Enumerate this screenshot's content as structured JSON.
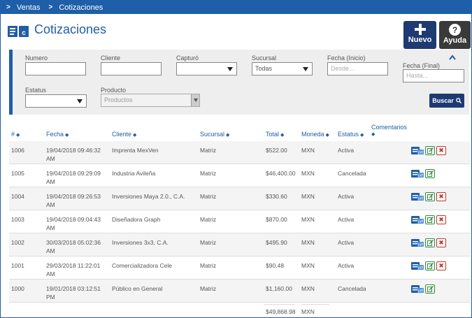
{
  "breadcrumb": [
    "Ventas",
    "Cotizaciones"
  ],
  "page_title": "Cotizaciones",
  "header_buttons": {
    "nuevo": "Nuevo",
    "ayuda": "Ayuda"
  },
  "filters": {
    "numero_label": "Numero",
    "cliente_label": "Cliente",
    "capturo_label": "Capturó",
    "sucursal_label": "Sucursal",
    "sucursal_value": "Todas",
    "fecha_inicio_label": "Fecha (Inicio)",
    "fecha_inicio_placeholder": "Desde...",
    "fecha_final_label": "Fecha (Final)",
    "fecha_final_placeholder": "Hasta...",
    "estatus_label": "Estatus",
    "producto_label": "Producto",
    "producto_value": "Productos",
    "buscar": "Buscar"
  },
  "table": {
    "headers": {
      "numero": "#",
      "fecha": "Fecha",
      "cliente": "Cliente",
      "sucursal": "Sucursal",
      "total": "Total",
      "moneda": "Moneda",
      "estatus": "Estatus",
      "comentarios": "Comentarios"
    },
    "rows": [
      {
        "numero": "1006",
        "fecha1": "19/04/2018 09:46:32",
        "fecha2": "AM",
        "cliente": "Imprenta MexVen",
        "sucursal": "Matriz",
        "total": "$522.00",
        "moneda": "MXN",
        "estatus": "Activa"
      },
      {
        "numero": "1005",
        "fecha1": "19/04/2018 09:29:09",
        "fecha2": "AM",
        "cliente": "Industria Avileña",
        "sucursal": "Matriz",
        "total": "$46,400.00",
        "moneda": "MXN",
        "estatus": "Cancelada"
      },
      {
        "numero": "1004",
        "fecha1": "19/04/2018 09:26:53",
        "fecha2": "AM",
        "cliente": "Inversiones Maya 2.0., C.A.",
        "sucursal": "Matriz",
        "total": "$330.60",
        "moneda": "MXN",
        "estatus": "Activa"
      },
      {
        "numero": "1003",
        "fecha1": "19/04/2018 09:04:43",
        "fecha2": "AM",
        "cliente": "Diseñadora Graph",
        "sucursal": "Matriz",
        "total": "$870.00",
        "moneda": "MXN",
        "estatus": "Activa"
      },
      {
        "numero": "1002",
        "fecha1": "30/03/2018 05:02:36",
        "fecha2": "AM",
        "cliente": "Inversiones 3x3, C.A.",
        "sucursal": "Matriz",
        "total": "$495.90",
        "moneda": "MXN",
        "estatus": "Activa"
      },
      {
        "numero": "1001",
        "fecha1": "29/03/2018 11:22:01",
        "fecha2": "AM",
        "cliente": "Comercializadora Cele",
        "sucursal": "Matriz",
        "total": "$90.48",
        "moneda": "MXN",
        "estatus": "Activa"
      },
      {
        "numero": "1000",
        "fecha1": "19/01/2018 03:12:51",
        "fecha2": "PM",
        "cliente": "Público en General",
        "sucursal": "Matriz",
        "total": "$1,160.00",
        "moneda": "MXN",
        "estatus": "Cancelada"
      }
    ],
    "footer": {
      "total": "$49,868.98",
      "moneda": "MXN"
    }
  },
  "colors": {
    "primary": "#1f5ea8",
    "dark_button": "#1d3a72",
    "help_button": "#3a3a3a",
    "edit_green": "#2e8b3a",
    "delete_red": "#c0392b"
  }
}
